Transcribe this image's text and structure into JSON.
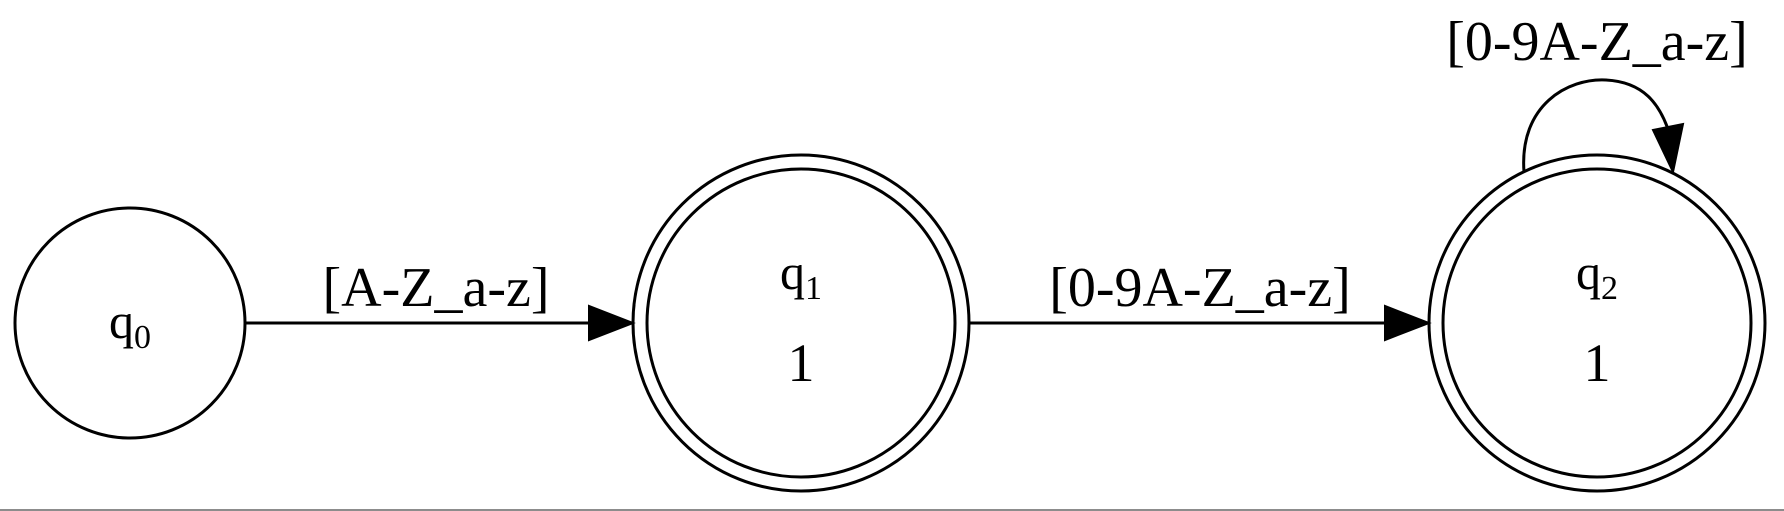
{
  "automaton": {
    "states": [
      {
        "id": "q0",
        "name": "q",
        "subscript": "0",
        "output": "",
        "accepting": false
      },
      {
        "id": "q1",
        "name": "q",
        "subscript": "1",
        "output": "1",
        "accepting": true
      },
      {
        "id": "q2",
        "name": "q",
        "subscript": "2",
        "output": "1",
        "accepting": true
      }
    ],
    "transitions": [
      {
        "from": "q0",
        "to": "q1",
        "label": "[A-Z_a-z]"
      },
      {
        "from": "q1",
        "to": "q2",
        "label": "[0-9A-Z_a-z]"
      },
      {
        "from": "q2",
        "to": "q2",
        "label": "[0-9A-Z_a-z]"
      }
    ]
  },
  "colors": {
    "stroke": "#000000",
    "background": "#ffffff"
  }
}
